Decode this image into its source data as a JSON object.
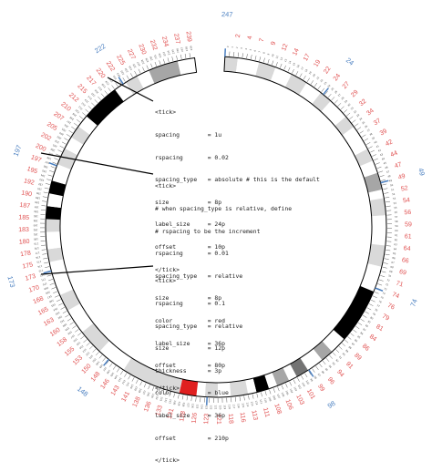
{
  "diagram": {
    "label_colors": {
      "relative_red": "#e05050",
      "absolute_blue": "#4a7fc0",
      "ticks": "#333333"
    },
    "band_colors": {
      "gneg": "#ffffff",
      "gpos25": "#d9d9d9",
      "gpos50": "#a6a6a6",
      "gpos75": "#737373",
      "gpos100": "#000000",
      "acen": "#e02020"
    },
    "ideogram": {
      "start": 0,
      "end": 247,
      "gap_start": 240,
      "gap_end": 247,
      "bands": [
        {
          "start": 0,
          "end": 3,
          "shade": "gpos25"
        },
        {
          "start": 3,
          "end": 8,
          "shade": "gneg"
        },
        {
          "start": 8,
          "end": 12,
          "shade": "gpos25"
        },
        {
          "start": 12,
          "end": 16,
          "shade": "gneg"
        },
        {
          "start": 16,
          "end": 20,
          "shade": "gpos25"
        },
        {
          "start": 20,
          "end": 24,
          "shade": "gneg"
        },
        {
          "start": 24,
          "end": 27,
          "shade": "gpos25"
        },
        {
          "start": 27,
          "end": 32,
          "shade": "gneg"
        },
        {
          "start": 32,
          "end": 35,
          "shade": "gpos25"
        },
        {
          "start": 35,
          "end": 41,
          "shade": "gneg"
        },
        {
          "start": 41,
          "end": 44,
          "shade": "gpos25"
        },
        {
          "start": 44,
          "end": 47,
          "shade": "gneg"
        },
        {
          "start": 47,
          "end": 51,
          "shade": "gpos50"
        },
        {
          "start": 51,
          "end": 53,
          "shade": "gneg"
        },
        {
          "start": 53,
          "end": 57,
          "shade": "gpos25"
        },
        {
          "start": 57,
          "end": 64,
          "shade": "gneg"
        },
        {
          "start": 64,
          "end": 69,
          "shade": "gpos25"
        },
        {
          "start": 69,
          "end": 75,
          "shade": "gneg"
        },
        {
          "start": 75,
          "end": 88,
          "shade": "gpos100"
        },
        {
          "start": 88,
          "end": 92,
          "shade": "gneg"
        },
        {
          "start": 92,
          "end": 95,
          "shade": "gpos50"
        },
        {
          "start": 95,
          "end": 99,
          "shade": "gneg"
        },
        {
          "start": 99,
          "end": 102,
          "shade": "gpos75"
        },
        {
          "start": 102,
          "end": 104,
          "shade": "gneg"
        },
        {
          "start": 104,
          "end": 107,
          "shade": "gpos50"
        },
        {
          "start": 107,
          "end": 109,
          "shade": "gneg"
        },
        {
          "start": 109,
          "end": 112,
          "shade": "gpos100"
        },
        {
          "start": 112,
          "end": 114,
          "shade": "gneg"
        },
        {
          "start": 114,
          "end": 118,
          "shade": "gpos25"
        },
        {
          "start": 118,
          "end": 121,
          "shade": "gneg"
        },
        {
          "start": 121,
          "end": 124,
          "shade": "gpos25"
        },
        {
          "start": 124,
          "end": 126,
          "shade": "gneg"
        },
        {
          "start": 126,
          "end": 130,
          "shade": "acen"
        },
        {
          "start": 130,
          "end": 133,
          "shade": "gpos25"
        },
        {
          "start": 133,
          "end": 144,
          "shade": "gpos25"
        },
        {
          "start": 144,
          "end": 151,
          "shade": "gneg"
        },
        {
          "start": 151,
          "end": 157,
          "shade": "gpos25"
        },
        {
          "start": 157,
          "end": 163,
          "shade": "gneg"
        },
        {
          "start": 163,
          "end": 167,
          "shade": "gpos25"
        },
        {
          "start": 167,
          "end": 175,
          "shade": "gneg"
        },
        {
          "start": 175,
          "end": 178,
          "shade": "gpos25"
        },
        {
          "start": 178,
          "end": 182,
          "shade": "gneg"
        },
        {
          "start": 182,
          "end": 185,
          "shade": "gpos25"
        },
        {
          "start": 185,
          "end": 188,
          "shade": "gpos100"
        },
        {
          "start": 188,
          "end": 191,
          "shade": "gneg"
        },
        {
          "start": 191,
          "end": 194,
          "shade": "gpos100"
        },
        {
          "start": 194,
          "end": 198,
          "shade": "gneg"
        },
        {
          "start": 198,
          "end": 202,
          "shade": "gpos25"
        },
        {
          "start": 202,
          "end": 205,
          "shade": "gneg"
        },
        {
          "start": 205,
          "end": 208,
          "shade": "gpos25"
        },
        {
          "start": 208,
          "end": 211,
          "shade": "gneg"
        },
        {
          "start": 211,
          "end": 220,
          "shade": "gpos100"
        },
        {
          "start": 220,
          "end": 223,
          "shade": "gneg"
        },
        {
          "start": 223,
          "end": 226,
          "shade": "gpos25"
        },
        {
          "start": 226,
          "end": 229,
          "shade": "gneg"
        },
        {
          "start": 229,
          "end": 236,
          "shade": "gpos50"
        },
        {
          "start": 236,
          "end": 240,
          "shade": "gneg"
        }
      ]
    },
    "tick_spacing_units": 1,
    "relative_labels": [
      "2",
      "4",
      "7",
      "9",
      "12",
      "14",
      "17",
      "19",
      "22",
      "24",
      "27",
      "29",
      "32",
      "34",
      "37",
      "39",
      "42",
      "44",
      "47",
      "49",
      "52",
      "54",
      "56",
      "59",
      "61",
      "64",
      "66",
      "69",
      "71",
      "74",
      "76",
      "79",
      "81",
      "84",
      "86",
      "89",
      "91",
      "94",
      "96",
      "99",
      "101",
      "103",
      "106",
      "108",
      "111",
      "113",
      "116",
      "118",
      "121",
      "123",
      "126",
      "128",
      "131",
      "133",
      "136",
      "138",
      "141",
      "143",
      "146",
      "148",
      "150",
      "153",
      "155",
      "158",
      "160",
      "163",
      "165",
      "168",
      "170",
      "173",
      "175",
      "178",
      "180",
      "183",
      "185",
      "187",
      "190",
      "192",
      "195",
      "197",
      "200",
      "202",
      "205",
      "207",
      "210",
      "212",
      "215",
      "217",
      "220",
      "222",
      "225",
      "227",
      "230",
      "232",
      "234",
      "237",
      "239",
      "242",
      "244"
    ],
    "absolute_labels": [
      "247",
      "24",
      "49",
      "74",
      "98",
      "123",
      "148",
      "173",
      "197",
      "222"
    ],
    "code_blocks": [
      {
        "lines": [
          "<tick>",
          "spacing        = 1u",
          "rspacing       = 0.02",
          "spacing_type   = absolute # this is the default",
          "size           = 8p",
          "label_size     = 24p",
          "offset         = 10p",
          "</tick>"
        ]
      },
      {
        "lines": [
          "<tick>",
          "# when spacing_type is relative, define",
          "# rspacing to be the increment",
          "rspacing       = 0.01",
          "spacing_type   = relative",
          "size           = 8p",
          "color          = red",
          "label_size     = 36p",
          "offset         = 80p",
          "</tick>"
        ]
      },
      {
        "lines": [
          "<tick>",
          "rspacing       = 0.1",
          "spacing_type   = relative",
          "size           = 12p",
          "thickness      = 3p",
          "color          = blue",
          "label_size     = 36p",
          "offset         = 210p",
          "</tick>"
        ]
      }
    ]
  }
}
